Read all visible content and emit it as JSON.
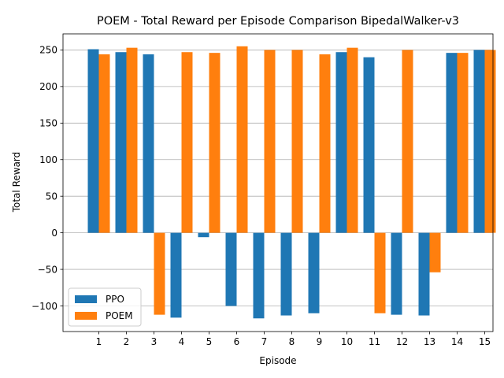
{
  "chart_data": {
    "type": "bar",
    "title": "POEM - Total Reward per Episode Comparison BipedalWalker-v3",
    "xlabel": "Episode",
    "ylabel": "Total Reward",
    "categories": [
      "1",
      "2",
      "3",
      "4",
      "5",
      "6",
      "7",
      "8",
      "9",
      "10",
      "11",
      "12",
      "13",
      "14",
      "15"
    ],
    "series": [
      {
        "name": "PPO",
        "color": "#1f77b4",
        "values": [
          251,
          247,
          244,
          -116,
          -6,
          -100,
          -117,
          -113,
          -110,
          247,
          240,
          -112,
          -113,
          246,
          250
        ]
      },
      {
        "name": "POEM",
        "color": "#ff7f0e",
        "values": [
          244,
          253,
          -112,
          247,
          246,
          255,
          250,
          250,
          244,
          253,
          -110,
          250,
          -54,
          246,
          250
        ]
      }
    ],
    "ylim": [
      -135,
      272
    ],
    "yticks": [
      -100,
      -50,
      0,
      50,
      100,
      150,
      200,
      250
    ],
    "ytick_labels": [
      "−100",
      "−50",
      "0",
      "50",
      "100",
      "150",
      "200",
      "250"
    ],
    "grid": "y",
    "legend_position": "lower-left"
  }
}
